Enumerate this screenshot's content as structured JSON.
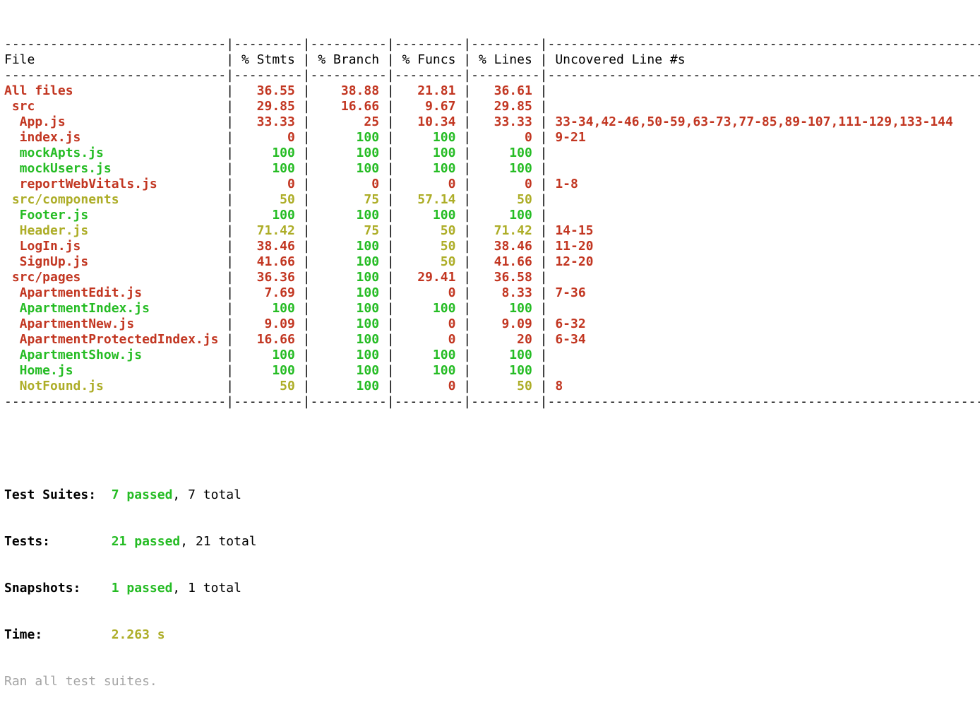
{
  "colors": {
    "red": "#c23621",
    "green": "#25bc24",
    "yellow": "#adad27",
    "gray": "#a5a5a5",
    "text": "#000000"
  },
  "coverage": {
    "separator": {
      "file": "-----------------------------",
      "stmts": "---------",
      "branch": "----------",
      "funcs": "---------",
      "lines": "---------",
      "uncovered": "-------------------------------------------------------------"
    },
    "header": {
      "file": "File",
      "stmts": "% Stmts",
      "branch": "% Branch",
      "funcs": "% Funcs",
      "lines": "% Lines",
      "uncovered": "Uncovered Line #s"
    },
    "rows": [
      {
        "name": "All files",
        "indent": 0,
        "stmts": "36.55",
        "branch": "38.88",
        "funcs": "21.81",
        "lines": "36.61",
        "uncovered": "",
        "c": {
          "name": "red",
          "stmts": "red",
          "branch": "red",
          "funcs": "red",
          "lines": "red"
        }
      },
      {
        "name": "src",
        "indent": 1,
        "stmts": "29.85",
        "branch": "16.66",
        "funcs": "9.67",
        "lines": "29.85",
        "uncovered": "",
        "c": {
          "name": "red",
          "stmts": "red",
          "branch": "red",
          "funcs": "red",
          "lines": "red"
        }
      },
      {
        "name": "App.js",
        "indent": 2,
        "stmts": "33.33",
        "branch": "25",
        "funcs": "10.34",
        "lines": "33.33",
        "uncovered": "33-34,42-46,50-59,63-73,77-85,89-107,111-129,133-144",
        "c": {
          "name": "red",
          "stmts": "red",
          "branch": "red",
          "funcs": "red",
          "lines": "red"
        }
      },
      {
        "name": "index.js",
        "indent": 2,
        "stmts": "0",
        "branch": "100",
        "funcs": "100",
        "lines": "0",
        "uncovered": "9-21",
        "c": {
          "name": "red",
          "stmts": "red",
          "branch": "green",
          "funcs": "green",
          "lines": "red"
        }
      },
      {
        "name": "mockApts.js",
        "indent": 2,
        "stmts": "100",
        "branch": "100",
        "funcs": "100",
        "lines": "100",
        "uncovered": "",
        "c": {
          "name": "green",
          "stmts": "green",
          "branch": "green",
          "funcs": "green",
          "lines": "green"
        }
      },
      {
        "name": "mockUsers.js",
        "indent": 2,
        "stmts": "100",
        "branch": "100",
        "funcs": "100",
        "lines": "100",
        "uncovered": "",
        "c": {
          "name": "green",
          "stmts": "green",
          "branch": "green",
          "funcs": "green",
          "lines": "green"
        }
      },
      {
        "name": "reportWebVitals.js",
        "indent": 2,
        "stmts": "0",
        "branch": "0",
        "funcs": "0",
        "lines": "0",
        "uncovered": "1-8",
        "c": {
          "name": "red",
          "stmts": "red",
          "branch": "red",
          "funcs": "red",
          "lines": "red"
        }
      },
      {
        "name": "src/components",
        "indent": 1,
        "stmts": "50",
        "branch": "75",
        "funcs": "57.14",
        "lines": "50",
        "uncovered": "",
        "c": {
          "name": "yellow",
          "stmts": "yellow",
          "branch": "yellow",
          "funcs": "yellow",
          "lines": "yellow"
        }
      },
      {
        "name": "Footer.js",
        "indent": 2,
        "stmts": "100",
        "branch": "100",
        "funcs": "100",
        "lines": "100",
        "uncovered": "",
        "c": {
          "name": "green",
          "stmts": "green",
          "branch": "green",
          "funcs": "green",
          "lines": "green"
        }
      },
      {
        "name": "Header.js",
        "indent": 2,
        "stmts": "71.42",
        "branch": "75",
        "funcs": "50",
        "lines": "71.42",
        "uncovered": "14-15",
        "c": {
          "name": "yellow",
          "stmts": "yellow",
          "branch": "yellow",
          "funcs": "yellow",
          "lines": "yellow"
        }
      },
      {
        "name": "LogIn.js",
        "indent": 2,
        "stmts": "38.46",
        "branch": "100",
        "funcs": "50",
        "lines": "38.46",
        "uncovered": "11-20",
        "c": {
          "name": "red",
          "stmts": "red",
          "branch": "green",
          "funcs": "yellow",
          "lines": "red"
        }
      },
      {
        "name": "SignUp.js",
        "indent": 2,
        "stmts": "41.66",
        "branch": "100",
        "funcs": "50",
        "lines": "41.66",
        "uncovered": "12-20",
        "c": {
          "name": "red",
          "stmts": "red",
          "branch": "green",
          "funcs": "yellow",
          "lines": "red"
        }
      },
      {
        "name": "src/pages",
        "indent": 1,
        "stmts": "36.36",
        "branch": "100",
        "funcs": "29.41",
        "lines": "36.58",
        "uncovered": "",
        "c": {
          "name": "red",
          "stmts": "red",
          "branch": "green",
          "funcs": "red",
          "lines": "red"
        }
      },
      {
        "name": "ApartmentEdit.js",
        "indent": 2,
        "stmts": "7.69",
        "branch": "100",
        "funcs": "0",
        "lines": "8.33",
        "uncovered": "7-36",
        "c": {
          "name": "red",
          "stmts": "red",
          "branch": "green",
          "funcs": "red",
          "lines": "red"
        }
      },
      {
        "name": "ApartmentIndex.js",
        "indent": 2,
        "stmts": "100",
        "branch": "100",
        "funcs": "100",
        "lines": "100",
        "uncovered": "",
        "c": {
          "name": "green",
          "stmts": "green",
          "branch": "green",
          "funcs": "green",
          "lines": "green"
        }
      },
      {
        "name": "ApartmentNew.js",
        "indent": 2,
        "stmts": "9.09",
        "branch": "100",
        "funcs": "0",
        "lines": "9.09",
        "uncovered": "6-32",
        "c": {
          "name": "red",
          "stmts": "red",
          "branch": "green",
          "funcs": "red",
          "lines": "red"
        }
      },
      {
        "name": "ApartmentProtectedIndex.js",
        "indent": 2,
        "stmts": "16.66",
        "branch": "100",
        "funcs": "0",
        "lines": "20",
        "uncovered": "6-34",
        "c": {
          "name": "red",
          "stmts": "red",
          "branch": "green",
          "funcs": "red",
          "lines": "red"
        }
      },
      {
        "name": "ApartmentShow.js",
        "indent": 2,
        "stmts": "100",
        "branch": "100",
        "funcs": "100",
        "lines": "100",
        "uncovered": "",
        "c": {
          "name": "green",
          "stmts": "green",
          "branch": "green",
          "funcs": "green",
          "lines": "green"
        }
      },
      {
        "name": "Home.js",
        "indent": 2,
        "stmts": "100",
        "branch": "100",
        "funcs": "100",
        "lines": "100",
        "uncovered": "",
        "c": {
          "name": "green",
          "stmts": "green",
          "branch": "green",
          "funcs": "green",
          "lines": "green"
        }
      },
      {
        "name": "NotFound.js",
        "indent": 2,
        "stmts": "50",
        "branch": "100",
        "funcs": "0",
        "lines": "50",
        "uncovered": "8",
        "c": {
          "name": "yellow",
          "stmts": "yellow",
          "branch": "green",
          "funcs": "red",
          "lines": "yellow"
        }
      }
    ]
  },
  "summary": {
    "suites": {
      "label": "Test Suites:",
      "passed": "7 passed",
      "total": ", 7 total"
    },
    "tests": {
      "label": "Tests:",
      "passed": "21 passed",
      "total": ", 21 total"
    },
    "snapshots": {
      "label": "Snapshots:",
      "passed": "1 passed",
      "total": ", 1 total"
    },
    "time": {
      "label": "Time:",
      "value": "2.263 s"
    },
    "ran": "Ran all test suites."
  }
}
